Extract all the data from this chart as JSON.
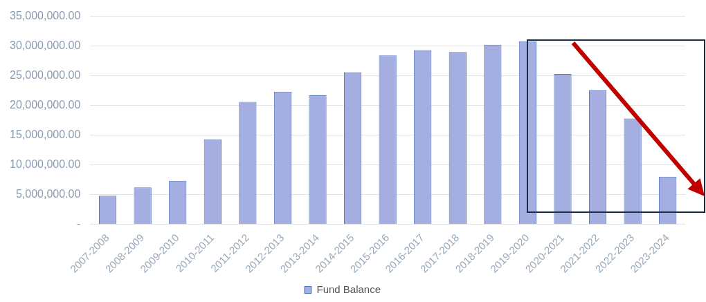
{
  "chart_data": {
    "type": "bar",
    "categories": [
      "2007-2008",
      "2008-2009",
      "2009-2010",
      "2010-2011",
      "2011-2012",
      "2012-2013",
      "2013-2014",
      "2014-2015",
      "2015-2016",
      "2016-2017",
      "2017-2018",
      "2018-2019",
      "2019-2020",
      "2020-2021",
      "2021-2022",
      "2022-2023",
      "2023-2024"
    ],
    "series": [
      {
        "name": "Fund Balance",
        "color": "#a5aee0",
        "values": [
          4800000,
          6200000,
          7300000,
          14300000,
          20600000,
          22300000,
          21700000,
          25600000,
          28400000,
          29300000,
          29000000,
          30200000,
          30800000,
          25300000,
          22600000,
          17800000,
          8000000
        ]
      }
    ],
    "ylim": [
      0,
      35000000
    ],
    "yticks": [
      {
        "value": 0,
        "label": "-"
      },
      {
        "value": 5000000,
        "label": "5,000,000.00"
      },
      {
        "value": 10000000,
        "label": "10,000,000.00"
      },
      {
        "value": 15000000,
        "label": "15,000,000.00"
      },
      {
        "value": 20000000,
        "label": "20,000,000.00"
      },
      {
        "value": 25000000,
        "label": "25,000,000.00"
      },
      {
        "value": 30000000,
        "label": "30,000,000.00"
      },
      {
        "value": 35000000,
        "label": "35,000,000.00"
      }
    ],
    "grid": "y",
    "legend": "bottom"
  }
}
